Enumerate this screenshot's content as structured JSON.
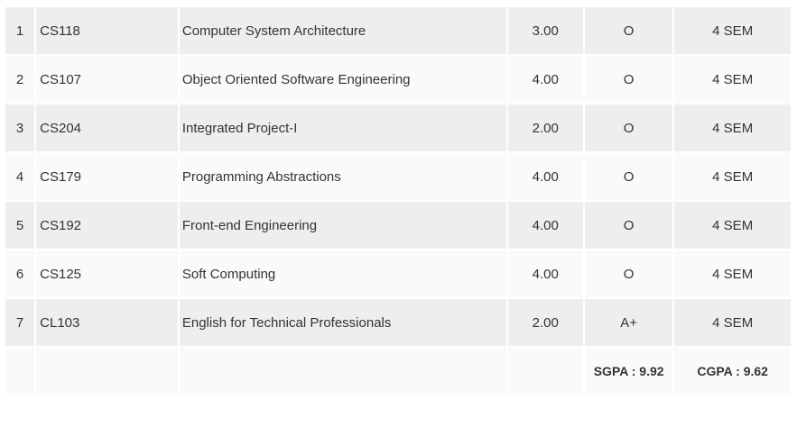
{
  "results": {
    "rows": [
      {
        "num": "1",
        "code": "CS118",
        "title": "Computer System Architecture",
        "credits": "3.00",
        "grade": "O",
        "semester": "4 SEM"
      },
      {
        "num": "2",
        "code": "CS107",
        "title": "Object Oriented Software Engineering",
        "credits": "4.00",
        "grade": "O",
        "semester": "4 SEM"
      },
      {
        "num": "3",
        "code": "CS204",
        "title": "Integrated Project-I",
        "credits": "2.00",
        "grade": "O",
        "semester": "4 SEM"
      },
      {
        "num": "4",
        "code": "CS179",
        "title": "Programming Abstractions",
        "credits": "4.00",
        "grade": "O",
        "semester": "4 SEM"
      },
      {
        "num": "5",
        "code": "CS192",
        "title": "Front-end Engineering",
        "credits": "4.00",
        "grade": "O",
        "semester": "4 SEM"
      },
      {
        "num": "6",
        "code": "CS125",
        "title": "Soft Computing",
        "credits": "4.00",
        "grade": "O",
        "semester": "4 SEM"
      },
      {
        "num": "7",
        "code": "CL103",
        "title": "English for Technical Professionals",
        "credits": "2.00",
        "grade": "A+",
        "semester": "4 SEM"
      }
    ],
    "summary": {
      "sgpa": "SGPA :  9.92",
      "cgpa": "CGPA :  9.62"
    }
  },
  "colors": {
    "row_odd": "#eeeeee",
    "row_even": "#fafafa",
    "text": "#333333"
  }
}
